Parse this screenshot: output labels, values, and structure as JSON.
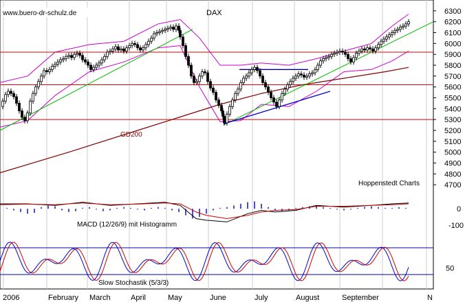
{
  "chart_data": {
    "type": "line",
    "watermark": "www.buero-dr-schulz.de",
    "title": "DAX",
    "source_note": "Hoppenstedt Charts",
    "x_axis": {
      "labels": [
        "2006",
        "February",
        "March",
        "April",
        "May",
        "June",
        "July",
        "August",
        "September",
        "N"
      ]
    },
    "price_panel": {
      "ylim": [
        4600,
        6400
      ],
      "yticks": [
        6300,
        6200,
        6100,
        6000,
        5900,
        5800,
        5700,
        5600,
        5500,
        5400,
        5300,
        5200,
        5100,
        5000,
        4900,
        4800,
        4700
      ],
      "horizontal_levels": [
        5920,
        5620,
        5300
      ],
      "gd200_label": "GD200",
      "close_series": [
        [
          0,
          5420
        ],
        [
          4,
          5470
        ],
        [
          8,
          5530
        ],
        [
          12,
          5560
        ],
        [
          16,
          5540
        ],
        [
          20,
          5510
        ],
        [
          24,
          5450
        ],
        [
          28,
          5380
        ],
        [
          32,
          5320
        ],
        [
          36,
          5290
        ],
        [
          40,
          5360
        ],
        [
          44,
          5470
        ],
        [
          48,
          5540
        ],
        [
          52,
          5600
        ],
        [
          56,
          5650
        ],
        [
          60,
          5700
        ],
        [
          64,
          5750
        ],
        [
          68,
          5740
        ],
        [
          72,
          5760
        ],
        [
          76,
          5790
        ],
        [
          80,
          5810
        ],
        [
          84,
          5830
        ],
        [
          88,
          5850
        ],
        [
          92,
          5860
        ],
        [
          96,
          5880
        ],
        [
          100,
          5890
        ],
        [
          104,
          5870
        ],
        [
          108,
          5900
        ],
        [
          112,
          5910
        ],
        [
          116,
          5890
        ],
        [
          120,
          5850
        ],
        [
          124,
          5830
        ],
        [
          128,
          5800
        ],
        [
          132,
          5760
        ],
        [
          136,
          5780
        ],
        [
          140,
          5800
        ],
        [
          144,
          5820
        ],
        [
          148,
          5850
        ],
        [
          152,
          5880
        ],
        [
          156,
          5920
        ],
        [
          160,
          5930
        ],
        [
          164,
          5950
        ],
        [
          168,
          5970
        ],
        [
          172,
          5940
        ],
        [
          176,
          5950
        ],
        [
          180,
          5930
        ],
        [
          184,
          5960
        ],
        [
          188,
          5980
        ],
        [
          192,
          6000
        ],
        [
          196,
          5990
        ],
        [
          200,
          5960
        ],
        [
          204,
          5940
        ],
        [
          208,
          5960
        ],
        [
          212,
          5990
        ],
        [
          216,
          6020
        ],
        [
          220,
          6050
        ],
        [
          224,
          6090
        ],
        [
          228,
          6100
        ],
        [
          232,
          6110
        ],
        [
          236,
          6120
        ],
        [
          240,
          6130
        ],
        [
          244,
          6140
        ],
        [
          248,
          6150
        ],
        [
          252,
          6130
        ],
        [
          256,
          6160
        ],
        [
          260,
          6120
        ],
        [
          262,
          6060
        ],
        [
          266,
          5980
        ],
        [
          270,
          5880
        ],
        [
          274,
          5800
        ],
        [
          278,
          5700
        ],
        [
          282,
          5640
        ],
        [
          286,
          5650
        ],
        [
          290,
          5700
        ],
        [
          294,
          5740
        ],
        [
          298,
          5730
        ],
        [
          302,
          5650
        ],
        [
          306,
          5590
        ],
        [
          310,
          5550
        ],
        [
          314,
          5480
        ],
        [
          318,
          5430
        ],
        [
          322,
          5380
        ],
        [
          324,
          5330
        ],
        [
          326,
          5270
        ],
        [
          330,
          5350
        ],
        [
          334,
          5420
        ],
        [
          338,
          5480
        ],
        [
          342,
          5540
        ],
        [
          346,
          5580
        ],
        [
          350,
          5640
        ],
        [
          354,
          5680
        ],
        [
          358,
          5700
        ],
        [
          362,
          5730
        ],
        [
          366,
          5760
        ],
        [
          370,
          5780
        ],
        [
          374,
          5750
        ],
        [
          378,
          5700
        ],
        [
          382,
          5640
        ],
        [
          386,
          5600
        ],
        [
          390,
          5550
        ],
        [
          394,
          5500
        ],
        [
          398,
          5460
        ],
        [
          402,
          5420
        ],
        [
          406,
          5480
        ],
        [
          410,
          5540
        ],
        [
          414,
          5580
        ],
        [
          418,
          5620
        ],
        [
          422,
          5650
        ],
        [
          426,
          5680
        ],
        [
          430,
          5700
        ],
        [
          434,
          5720
        ],
        [
          438,
          5710
        ],
        [
          442,
          5690
        ],
        [
          446,
          5700
        ],
        [
          450,
          5720
        ],
        [
          454,
          5730
        ],
        [
          458,
          5760
        ],
        [
          462,
          5800
        ],
        [
          466,
          5840
        ],
        [
          470,
          5860
        ],
        [
          474,
          5870
        ],
        [
          478,
          5880
        ],
        [
          482,
          5900
        ],
        [
          486,
          5910
        ],
        [
          490,
          5920
        ],
        [
          494,
          5930
        ],
        [
          498,
          5920
        ],
        [
          502,
          5900
        ],
        [
          506,
          5860
        ],
        [
          510,
          5830
        ],
        [
          514,
          5870
        ],
        [
          518,
          5910
        ],
        [
          522,
          5930
        ],
        [
          526,
          5950
        ],
        [
          530,
          5940
        ],
        [
          534,
          5960
        ],
        [
          538,
          5950
        ],
        [
          542,
          5930
        ],
        [
          546,
          5960
        ],
        [
          550,
          5990
        ],
        [
          554,
          6020
        ],
        [
          558,
          6040
        ],
        [
          562,
          6060
        ],
        [
          566,
          6080
        ],
        [
          570,
          6100
        ],
        [
          574,
          6120
        ],
        [
          578,
          6130
        ],
        [
          582,
          6150
        ],
        [
          586,
          6160
        ],
        [
          590,
          6180
        ],
        [
          594,
          6200
        ]
      ],
      "trendlines": {
        "green": [
          [
            [
              0,
              5200
            ],
            [
              280,
              6130
            ]
          ],
          [
            [
              325,
              5250
            ],
            [
              630,
              6200
            ]
          ]
        ],
        "blue": [
          [
            [
              325,
              5260
            ],
            [
              480,
              5560
            ]
          ]
        ],
        "navy_horizontal": [
          [
            [
              348,
              5760
            ],
            [
              448,
              5760
            ]
          ]
        ]
      },
      "gd200_series": [
        [
          0,
          4810
        ],
        [
          100,
          5000
        ],
        [
          200,
          5200
        ],
        [
          260,
          5320
        ],
        [
          320,
          5440
        ],
        [
          380,
          5540
        ],
        [
          440,
          5620
        ],
        [
          500,
          5680
        ],
        [
          560,
          5740
        ],
        [
          594,
          5780
        ]
      ],
      "bollinger_upper": [
        [
          0,
          5640
        ],
        [
          40,
          5700
        ],
        [
          80,
          5920
        ],
        [
          130,
          5990
        ],
        [
          180,
          6020
        ],
        [
          230,
          6180
        ],
        [
          262,
          6220
        ],
        [
          290,
          6050
        ],
        [
          320,
          5800
        ],
        [
          350,
          5800
        ],
        [
          380,
          5820
        ],
        [
          420,
          5800
        ],
        [
          460,
          5860
        ],
        [
          500,
          5930
        ],
        [
          540,
          6000
        ],
        [
          570,
          6160
        ],
        [
          594,
          6270
        ]
      ],
      "bollinger_lower": [
        [
          0,
          5230
        ],
        [
          40,
          5290
        ],
        [
          80,
          5520
        ],
        [
          130,
          5740
        ],
        [
          180,
          5830
        ],
        [
          230,
          5960
        ],
        [
          262,
          5980
        ],
        [
          290,
          5600
        ],
        [
          320,
          5280
        ],
        [
          350,
          5290
        ],
        [
          380,
          5440
        ],
        [
          420,
          5420
        ],
        [
          460,
          5560
        ],
        [
          500,
          5740
        ],
        [
          540,
          5760
        ],
        [
          570,
          5840
        ],
        [
          594,
          5930
        ]
      ]
    },
    "macd_panel": {
      "label": "MACD (12/26/9) mit Histogramm",
      "ylim": [
        -150,
        80
      ],
      "yticks": [
        0,
        -100
      ],
      "macd_series": [
        [
          0,
          30
        ],
        [
          40,
          30
        ],
        [
          80,
          20
        ],
        [
          120,
          40
        ],
        [
          160,
          20
        ],
        [
          200,
          30
        ],
        [
          240,
          40
        ],
        [
          262,
          20
        ],
        [
          285,
          -60
        ],
        [
          300,
          -70
        ],
        [
          330,
          -80
        ],
        [
          360,
          -30
        ],
        [
          380,
          -10
        ],
        [
          400,
          -20
        ],
        [
          430,
          -10
        ],
        [
          460,
          20
        ],
        [
          500,
          10
        ],
        [
          540,
          20
        ],
        [
          570,
          30
        ],
        [
          594,
          35
        ]
      ],
      "signal_series": [
        [
          0,
          25
        ],
        [
          40,
          28
        ],
        [
          80,
          25
        ],
        [
          120,
          35
        ],
        [
          160,
          25
        ],
        [
          200,
          28
        ],
        [
          240,
          35
        ],
        [
          262,
          30
        ],
        [
          285,
          -20
        ],
        [
          300,
          -40
        ],
        [
          330,
          -60
        ],
        [
          360,
          -40
        ],
        [
          380,
          -20
        ],
        [
          400,
          -10
        ],
        [
          430,
          -5
        ],
        [
          460,
          15
        ],
        [
          500,
          15
        ],
        [
          540,
          20
        ],
        [
          570,
          25
        ],
        [
          594,
          30
        ]
      ],
      "histogram": [
        [
          10,
          5
        ],
        [
          20,
          -10
        ],
        [
          30,
          -20
        ],
        [
          40,
          -30
        ],
        [
          50,
          -25
        ],
        [
          60,
          10
        ],
        [
          70,
          20
        ],
        [
          80,
          15
        ],
        [
          90,
          -10
        ],
        [
          100,
          -20
        ],
        [
          110,
          -15
        ],
        [
          120,
          5
        ],
        [
          130,
          10
        ],
        [
          140,
          -5
        ],
        [
          150,
          -15
        ],
        [
          160,
          -10
        ],
        [
          170,
          5
        ],
        [
          180,
          10
        ],
        [
          190,
          5
        ],
        [
          200,
          -5
        ],
        [
          210,
          -10
        ],
        [
          220,
          5
        ],
        [
          230,
          10
        ],
        [
          240,
          5
        ],
        [
          250,
          -10
        ],
        [
          260,
          -20
        ],
        [
          270,
          -40
        ],
        [
          280,
          -60
        ],
        [
          290,
          -50
        ],
        [
          300,
          -30
        ],
        [
          310,
          -10
        ],
        [
          320,
          5
        ],
        [
          330,
          10
        ],
        [
          340,
          20
        ],
        [
          350,
          30
        ],
        [
          360,
          40
        ],
        [
          370,
          45
        ],
        [
          380,
          30
        ],
        [
          390,
          10
        ],
        [
          400,
          -10
        ],
        [
          410,
          -15
        ],
        [
          420,
          -10
        ],
        [
          430,
          5
        ],
        [
          440,
          10
        ],
        [
          450,
          15
        ],
        [
          460,
          20
        ],
        [
          470,
          10
        ],
        [
          480,
          5
        ],
        [
          490,
          -5
        ],
        [
          500,
          -10
        ],
        [
          510,
          -5
        ],
        [
          520,
          5
        ],
        [
          530,
          10
        ],
        [
          540,
          15
        ],
        [
          550,
          10
        ],
        [
          560,
          5
        ],
        [
          570,
          5
        ],
        [
          580,
          10
        ],
        [
          590,
          5
        ]
      ]
    },
    "stochastic_panel": {
      "label": "Slow Stochastik (5/3/3)",
      "ylim": [
        0,
        100
      ],
      "yticks": [
        50
      ],
      "levels": [
        80,
        20
      ]
    }
  }
}
